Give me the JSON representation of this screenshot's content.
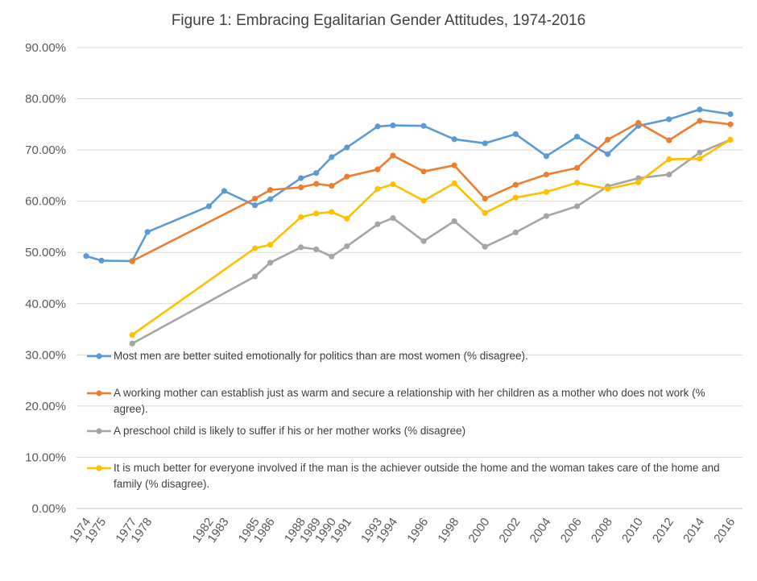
{
  "chart_data": {
    "type": "line",
    "title": "Figure 1: Embracing Egalitarian Gender Attitudes, 1974-2016",
    "xlabel": "",
    "ylabel": "",
    "ylim": [
      0,
      90
    ],
    "y_ticks": [
      "0.00%",
      "10.00%",
      "20.00%",
      "30.00%",
      "40.00%",
      "50.00%",
      "60.00%",
      "70.00%",
      "80.00%",
      "90.00%"
    ],
    "x_ticks": [
      "1974",
      "1975",
      "1977",
      "1978",
      "1982",
      "1983",
      "1985",
      "1986",
      "1988",
      "1989",
      "1990",
      "1991",
      "1993",
      "1994",
      "1996",
      "1998",
      "2000",
      "2002",
      "2004",
      "2006",
      "2008",
      "2010",
      "2012",
      "2014",
      "2016"
    ],
    "grid": "horizontal",
    "legend_position": "inside-bottom",
    "series": [
      {
        "name": "Most men are better suited emotionally for politics than are most women (% disagree).",
        "color": "#5B9BD5",
        "x": [
          1974,
          1975,
          1977,
          1978,
          1982,
          1983,
          1985,
          1986,
          1988,
          1989,
          1990,
          1991,
          1993,
          1994,
          1996,
          1998,
          2000,
          2002,
          2004,
          2006,
          2008,
          2010,
          2012,
          2014,
          2016
        ],
        "values": [
          49.3,
          48.4,
          48.3,
          54.0,
          59.0,
          62.0,
          59.2,
          60.4,
          64.5,
          65.5,
          68.6,
          70.5,
          74.6,
          74.8,
          74.7,
          72.1,
          71.3,
          73.1,
          68.8,
          72.6,
          69.2,
          74.7,
          76.0,
          77.9,
          77.0
        ]
      },
      {
        "name": "A working mother can establish just as warm and secure a relationship with her children as a mother who does not work (% agree).",
        "color": "#ED7D31",
        "x": [
          1977,
          1985,
          1986,
          1988,
          1989,
          1990,
          1991,
          1993,
          1994,
          1996,
          1998,
          2000,
          2002,
          2004,
          2006,
          2008,
          2010,
          2012,
          2014,
          2016
        ],
        "values": [
          48.3,
          60.5,
          62.2,
          62.7,
          63.4,
          63.0,
          64.8,
          66.2,
          68.9,
          65.8,
          67.0,
          60.5,
          63.2,
          65.2,
          66.5,
          72.0,
          75.3,
          71.9,
          75.7,
          75.0
        ]
      },
      {
        "name": "A preschool child is likely to suffer if his or her mother works (% disagree)",
        "color": "#A5A5A5",
        "x": [
          1977,
          1985,
          1986,
          1988,
          1989,
          1990,
          1991,
          1993,
          1994,
          1996,
          1998,
          2000,
          2002,
          2004,
          2006,
          2008,
          2010,
          2012,
          2014,
          2016
        ],
        "values": [
          32.2,
          45.3,
          48.0,
          51.0,
          50.6,
          49.2,
          51.2,
          55.5,
          56.7,
          52.2,
          56.1,
          51.1,
          53.9,
          57.1,
          59.0,
          62.9,
          64.5,
          65.2,
          69.5,
          72.0
        ]
      },
      {
        "name": "It is much better for everyone involved if the man is the achiever outside the home and the woman takes care of the home and family (% disagree).",
        "color": "#FFC000",
        "x": [
          1977,
          1985,
          1986,
          1988,
          1989,
          1990,
          1991,
          1993,
          1994,
          1996,
          1998,
          2000,
          2002,
          2004,
          2006,
          2008,
          2010,
          2012,
          2014,
          2016
        ],
        "values": [
          33.9,
          50.8,
          51.5,
          56.9,
          57.6,
          57.9,
          56.6,
          62.4,
          63.3,
          60.1,
          63.5,
          57.7,
          60.7,
          61.8,
          63.6,
          62.4,
          63.7,
          68.2,
          68.3,
          72.0
        ]
      }
    ]
  }
}
